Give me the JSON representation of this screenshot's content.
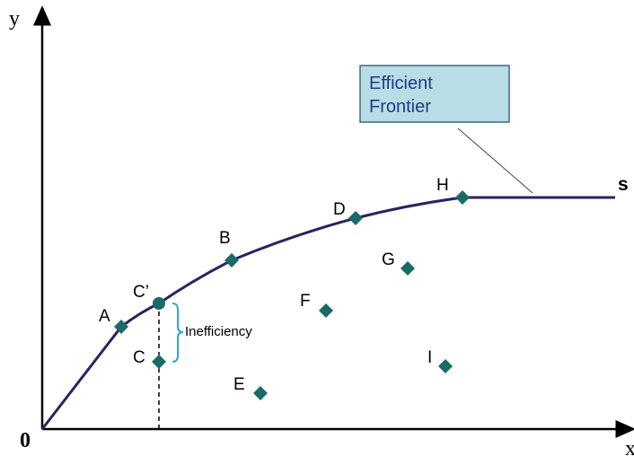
{
  "axes": {
    "y": "y",
    "x": "x",
    "origin": "0"
  },
  "frontier_label": "s",
  "callout": {
    "lines": [
      "Efficient",
      "Frontier"
    ]
  },
  "annotation": "Inefficiency",
  "points": [
    {
      "label": "A"
    },
    {
      "label": "C’"
    },
    {
      "label": "B"
    },
    {
      "label": "D"
    },
    {
      "label": "H"
    },
    {
      "label": "C"
    },
    {
      "label": "E"
    },
    {
      "label": "F"
    },
    {
      "label": "G"
    },
    {
      "label": "I"
    }
  ]
}
